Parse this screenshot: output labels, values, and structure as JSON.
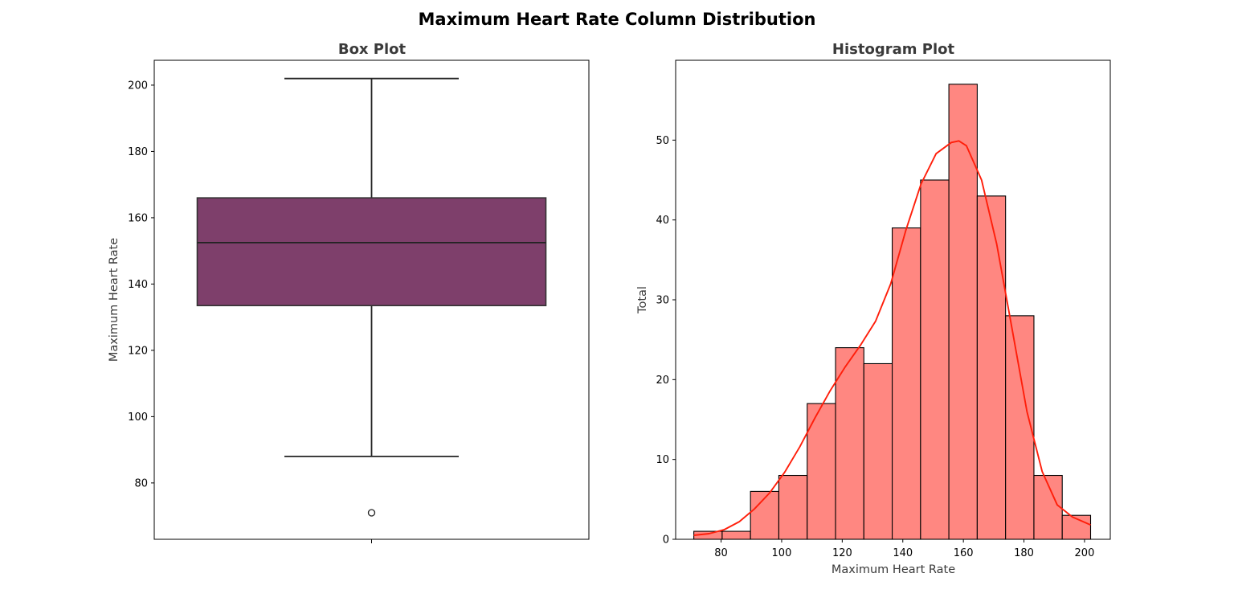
{
  "figure": {
    "title": "Maximum Heart Rate Column Distribution"
  },
  "colors": {
    "box_fill": "#7e3f6b",
    "hist_fill": "#ff8781",
    "kde_line": "#ff1e0a",
    "edge": "#000000"
  },
  "chart_data": [
    {
      "type": "box",
      "title": "Box Plot",
      "xlabel": "",
      "ylabel": "Maximum Heart Rate",
      "ylim": [
        63,
        207.5
      ],
      "yticks": [
        80,
        100,
        120,
        140,
        160,
        180,
        200
      ],
      "whisker_low": 88,
      "q1": 133.5,
      "median": 152.5,
      "q3": 166,
      "whisker_high": 202,
      "outliers": [
        71
      ]
    },
    {
      "type": "bar",
      "title": "Histogram Plot",
      "xlabel": "Maximum Heart Rate",
      "ylabel": "Total",
      "xlim": [
        65,
        208.5
      ],
      "ylim": [
        0,
        60
      ],
      "xticks": [
        80,
        100,
        120,
        140,
        160,
        180,
        200
      ],
      "yticks": [
        0,
        10,
        20,
        30,
        40,
        50
      ],
      "bin_edges": [
        71,
        80.36,
        89.71,
        99.07,
        108.43,
        117.79,
        127.14,
        136.5,
        145.86,
        155.21,
        164.57,
        173.93,
        183.29,
        192.64,
        202
      ],
      "counts": [
        1,
        1,
        6,
        8,
        17,
        24,
        22,
        39,
        45,
        57,
        43,
        28,
        8,
        3
      ],
      "kde": {
        "x": [
          71,
          76,
          81,
          86,
          91,
          96,
          101,
          106,
          111,
          116,
          121,
          126,
          131,
          136,
          141,
          146,
          151,
          156,
          158.5,
          161,
          166,
          171,
          176,
          181,
          186,
          191,
          196,
          202
        ],
        "y": [
          0.5,
          0.7,
          1.2,
          2.2,
          3.8,
          5.8,
          8.4,
          11.6,
          15.2,
          18.6,
          21.6,
          24.3,
          27.3,
          32.0,
          38.7,
          44.5,
          48.3,
          49.7,
          49.9,
          49.3,
          45.0,
          37.0,
          26.5,
          16.0,
          8.5,
          4.3,
          2.8,
          1.8
        ]
      }
    }
  ]
}
